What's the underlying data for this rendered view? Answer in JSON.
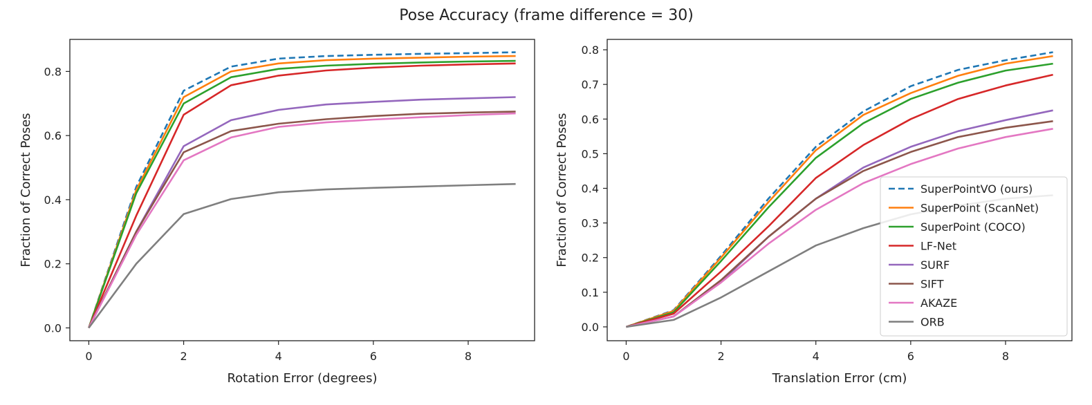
{
  "suptitle": "Pose Accuracy (frame difference = 30)",
  "chart_data": [
    {
      "type": "line",
      "xlabel": "Rotation Error (degrees)",
      "ylabel": "Fraction of Correct Poses",
      "xlim": [
        -0.4,
        9.4
      ],
      "ylim": [
        -0.04,
        0.9
      ],
      "xticks": [
        "0",
        "2",
        "4",
        "6",
        "8"
      ],
      "yticks": [
        "0.0",
        "0.2",
        "0.4",
        "0.6",
        "0.8"
      ],
      "grid": false,
      "x": [
        0,
        1,
        2,
        3,
        4,
        5,
        6,
        7,
        8,
        9
      ],
      "series": [
        {
          "name": "SuperPointVO (ours)",
          "color": "#1f77b4",
          "dashed": true,
          "values": [
            0.0,
            0.44,
            0.74,
            0.815,
            0.84,
            0.848,
            0.852,
            0.855,
            0.857,
            0.86
          ]
        },
        {
          "name": "SuperPoint (ScanNet)",
          "color": "#ff7f0e",
          "values": [
            0.0,
            0.43,
            0.72,
            0.8,
            0.825,
            0.835,
            0.84,
            0.843,
            0.846,
            0.848
          ]
        },
        {
          "name": "SuperPoint (COCO)",
          "color": "#2ca02c",
          "values": [
            0.0,
            0.42,
            0.7,
            0.782,
            0.808,
            0.818,
            0.824,
            0.828,
            0.831,
            0.833
          ]
        },
        {
          "name": "LF-Net",
          "color": "#d62728",
          "values": [
            0.0,
            0.35,
            0.665,
            0.757,
            0.787,
            0.803,
            0.812,
            0.818,
            0.822,
            0.825
          ]
        },
        {
          "name": "SURF",
          "color": "#9467bd",
          "values": [
            0.0,
            0.3,
            0.567,
            0.648,
            0.68,
            0.697,
            0.705,
            0.712,
            0.716,
            0.72
          ]
        },
        {
          "name": "SIFT",
          "color": "#8c564b",
          "values": [
            0.0,
            0.3,
            0.548,
            0.614,
            0.637,
            0.651,
            0.661,
            0.668,
            0.672,
            0.675
          ]
        },
        {
          "name": "AKAZE",
          "color": "#e377c2",
          "values": [
            0.0,
            0.29,
            0.523,
            0.594,
            0.627,
            0.641,
            0.65,
            0.657,
            0.664,
            0.669
          ]
        },
        {
          "name": "ORB",
          "color": "#7f7f7f",
          "values": [
            0.0,
            0.2,
            0.355,
            0.402,
            0.423,
            0.432,
            0.437,
            0.441,
            0.445,
            0.449
          ]
        }
      ]
    },
    {
      "type": "line",
      "xlabel": "Translation Error (cm)",
      "ylabel": "Fraction of Correct Poses",
      "xlim": [
        -0.4,
        9.4
      ],
      "ylim": [
        -0.04,
        0.83
      ],
      "xticks": [
        "0",
        "2",
        "4",
        "6",
        "8"
      ],
      "yticks": [
        "0.0",
        "0.1",
        "0.2",
        "0.3",
        "0.4",
        "0.5",
        "0.6",
        "0.7",
        "0.8"
      ],
      "grid": false,
      "legend": "lower right",
      "x": [
        0,
        1,
        2,
        3,
        4,
        5,
        6,
        7,
        8,
        9
      ],
      "series": [
        {
          "name": "SuperPointVO (ours)",
          "color": "#1f77b4",
          "dashed": true,
          "values": [
            0.0,
            0.048,
            0.205,
            0.37,
            0.52,
            0.622,
            0.695,
            0.742,
            0.77,
            0.793
          ]
        },
        {
          "name": "SuperPoint (ScanNet)",
          "color": "#ff7f0e",
          "values": [
            0.0,
            0.046,
            0.2,
            0.36,
            0.51,
            0.612,
            0.675,
            0.725,
            0.76,
            0.782
          ]
        },
        {
          "name": "SuperPoint (COCO)",
          "color": "#2ca02c",
          "values": [
            0.0,
            0.042,
            0.19,
            0.345,
            0.488,
            0.588,
            0.658,
            0.705,
            0.74,
            0.76
          ]
        },
        {
          "name": "LF-Net",
          "color": "#d62728",
          "values": [
            0.0,
            0.038,
            0.16,
            0.29,
            0.43,
            0.525,
            0.6,
            0.658,
            0.697,
            0.728
          ]
        },
        {
          "name": "SURF",
          "color": "#9467bd",
          "values": [
            0.0,
            0.03,
            0.13,
            0.26,
            0.37,
            0.46,
            0.52,
            0.565,
            0.597,
            0.625
          ]
        },
        {
          "name": "SIFT",
          "color": "#8c564b",
          "values": [
            0.0,
            0.03,
            0.135,
            0.26,
            0.37,
            0.45,
            0.505,
            0.548,
            0.575,
            0.594
          ]
        },
        {
          "name": "AKAZE",
          "color": "#e377c2",
          "values": [
            0.0,
            0.03,
            0.128,
            0.24,
            0.338,
            0.415,
            0.47,
            0.515,
            0.548,
            0.572
          ]
        },
        {
          "name": "ORB",
          "color": "#7f7f7f",
          "values": [
            0.0,
            0.02,
            0.085,
            0.16,
            0.235,
            0.285,
            0.325,
            0.35,
            0.37,
            0.38
          ]
        }
      ]
    }
  ]
}
